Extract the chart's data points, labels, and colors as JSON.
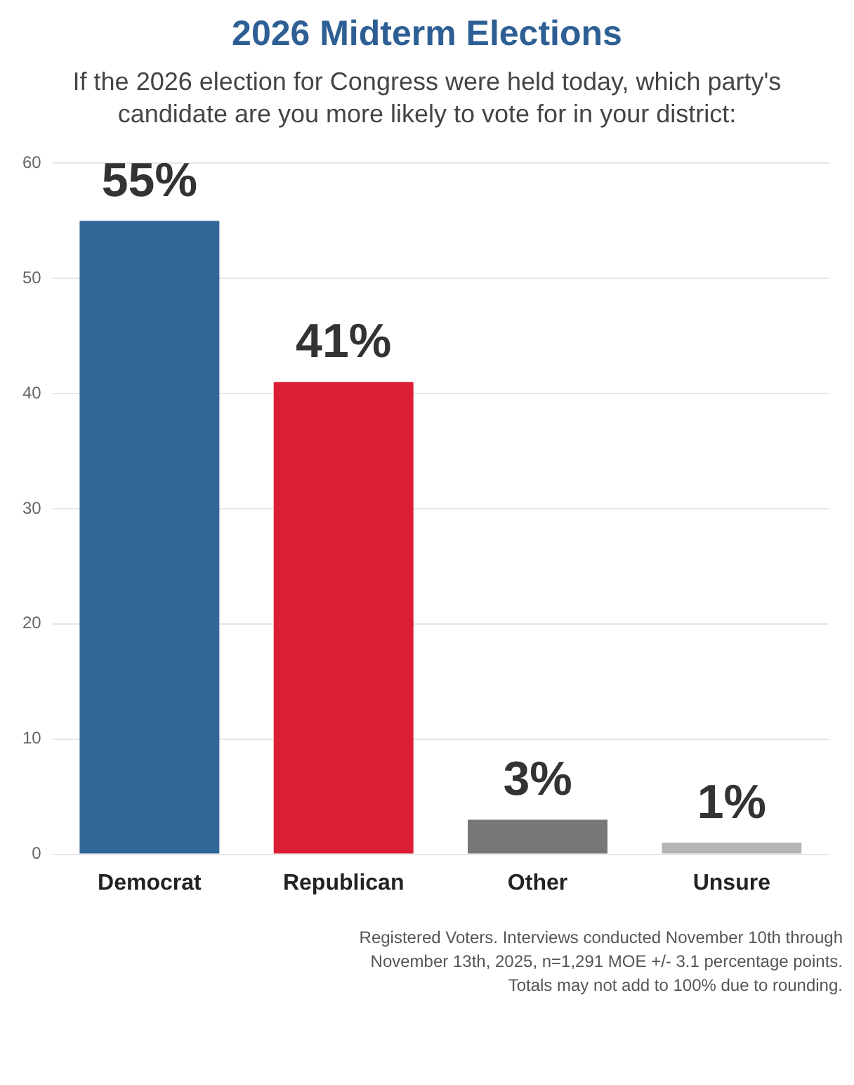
{
  "chart_data": {
    "type": "bar",
    "title": "2026 Midterm Elections",
    "subtitle": "If the 2026 election for Congress were held today, which party's candidate are you more likely to vote for in your district:",
    "categories": [
      "Democrat",
      "Republican",
      "Other",
      "Unsure"
    ],
    "values": [
      55,
      41,
      3,
      1
    ],
    "colors": [
      "#336699",
      "#dc1e35",
      "#777777",
      "#b5b5b5"
    ],
    "value_labels": [
      "55%",
      "41%",
      "3%",
      "1%"
    ],
    "ylim": [
      0,
      60
    ],
    "yticks": [
      0,
      10,
      20,
      30,
      40,
      50,
      60
    ],
    "grid": "y",
    "annotations": [
      "Registered Voters. Interviews conducted November 10th through November 13th, 2025, n=1,291 MOE +/- 3.1 percentage points. Totals may not add to 100% due to rounding."
    ]
  }
}
